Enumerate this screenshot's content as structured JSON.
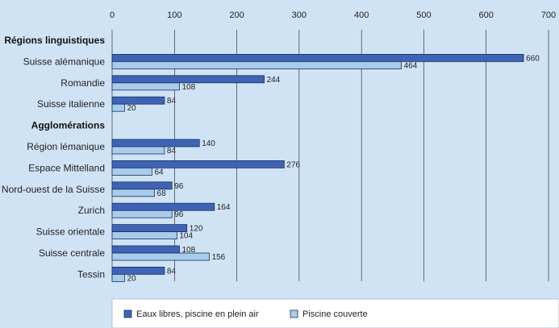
{
  "chart_data": {
    "type": "bar",
    "orientation": "horizontal",
    "title": "",
    "xlabel": "",
    "ylabel": "",
    "xlim": [
      0,
      700
    ],
    "x_ticks": [
      0,
      100,
      200,
      300,
      400,
      500,
      600,
      700
    ],
    "grid": "vertical",
    "legend_position": "bottom",
    "colors": {
      "background": "#cfe3f4",
      "plot_background": "#cfe3f4",
      "series_dark": "#3f63b5",
      "series_light": "#a7ccec",
      "gridline": "#1a1a1a",
      "legend_background": "#ffffff"
    },
    "series": [
      {
        "name": "Eaux libres, piscine en plein air",
        "color": "#3f63b5"
      },
      {
        "name": "Piscine couverte",
        "color": "#a7ccec"
      }
    ],
    "rows": [
      {
        "kind": "group",
        "label": "Régions linguistiques"
      },
      {
        "kind": "category",
        "label": "Suisse alémanique",
        "values": [
          660,
          464
        ]
      },
      {
        "kind": "category",
        "label": "Romandie",
        "values": [
          244,
          108
        ]
      },
      {
        "kind": "category",
        "label": "Suisse italienne",
        "values": [
          84,
          20
        ]
      },
      {
        "kind": "group",
        "label": "Agglomérations"
      },
      {
        "kind": "category",
        "label": "Région lémanique",
        "values": [
          140,
          84
        ]
      },
      {
        "kind": "category",
        "label": "Espace Mittelland",
        "values": [
          276,
          64
        ]
      },
      {
        "kind": "category",
        "label": "Nord-ouest de la Suisse",
        "values": [
          96,
          68
        ]
      },
      {
        "kind": "category",
        "label": "Zurich",
        "values": [
          164,
          96
        ]
      },
      {
        "kind": "category",
        "label": "Suisse orientale",
        "values": [
          120,
          104
        ]
      },
      {
        "kind": "category",
        "label": "Suisse centrale",
        "values": [
          108,
          156
        ]
      },
      {
        "kind": "category",
        "label": "Tessin",
        "values": [
          84,
          20
        ]
      }
    ]
  }
}
